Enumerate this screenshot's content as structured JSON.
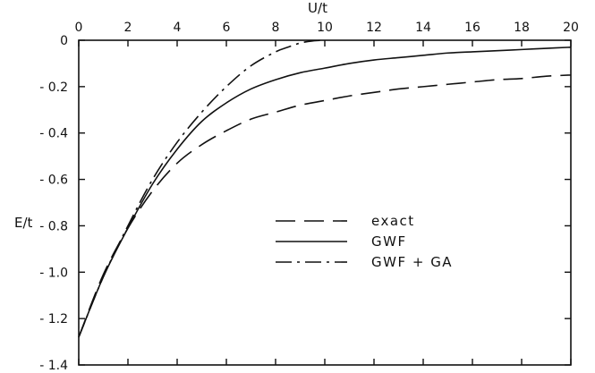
{
  "chart_data": {
    "type": "line",
    "title": "",
    "xlabel": "U/t",
    "ylabel": "E/t",
    "xlim": [
      0,
      20
    ],
    "ylim": [
      -1.4,
      0
    ],
    "x_ticks": [
      0,
      2,
      4,
      6,
      8,
      10,
      12,
      14,
      16,
      18,
      20
    ],
    "x_tick_labels": [
      "0",
      "2",
      "4",
      "6",
      "8",
      "10",
      "12",
      "14",
      "16",
      "18",
      "20"
    ],
    "y_ticks": [
      0,
      -0.2,
      -0.4,
      -0.6,
      -0.8,
      -1.0,
      -1.2,
      -1.4
    ],
    "y_tick_labels": [
      "0",
      "- 0.2",
      "- 0.4",
      "- 0.6",
      "- 0.8",
      "- 1.0",
      "- 1.2",
      "- 1.4"
    ],
    "x_axis_position": "top",
    "grid": false,
    "legend_position": "center-right",
    "series": [
      {
        "name": "exact",
        "dash": "dashed",
        "x": [
          0,
          1,
          2,
          3,
          4,
          5,
          6,
          7,
          8,
          9,
          10,
          11,
          12,
          13,
          14,
          15,
          16,
          17,
          18,
          19,
          20
        ],
        "y": [
          -1.28,
          -1.01,
          -0.81,
          -0.65,
          -0.53,
          -0.45,
          -0.39,
          -0.34,
          -0.31,
          -0.28,
          -0.26,
          -0.24,
          -0.225,
          -0.21,
          -0.2,
          -0.19,
          -0.18,
          -0.17,
          -0.165,
          -0.155,
          -0.15
        ]
      },
      {
        "name": "GWF",
        "dash": "solid",
        "x": [
          0,
          1,
          2,
          3,
          4,
          5,
          6,
          7,
          8,
          9,
          10,
          11,
          12,
          13,
          14,
          15,
          16,
          17,
          18,
          19,
          20
        ],
        "y": [
          -1.28,
          -1.02,
          -0.81,
          -0.62,
          -0.47,
          -0.35,
          -0.27,
          -0.21,
          -0.17,
          -0.14,
          -0.12,
          -0.1,
          -0.085,
          -0.075,
          -0.065,
          -0.055,
          -0.05,
          -0.045,
          -0.04,
          -0.035,
          -0.03
        ]
      },
      {
        "name": "GWF + GA",
        "dash": "dashdot",
        "x": [
          0,
          1,
          2,
          3,
          4,
          5,
          6,
          7,
          8,
          8.5,
          9,
          9.5,
          10
        ],
        "y": [
          -1.28,
          -1.02,
          -0.8,
          -0.6,
          -0.44,
          -0.31,
          -0.2,
          -0.11,
          -0.05,
          -0.03,
          -0.012,
          -0.003,
          0
        ]
      }
    ]
  }
}
